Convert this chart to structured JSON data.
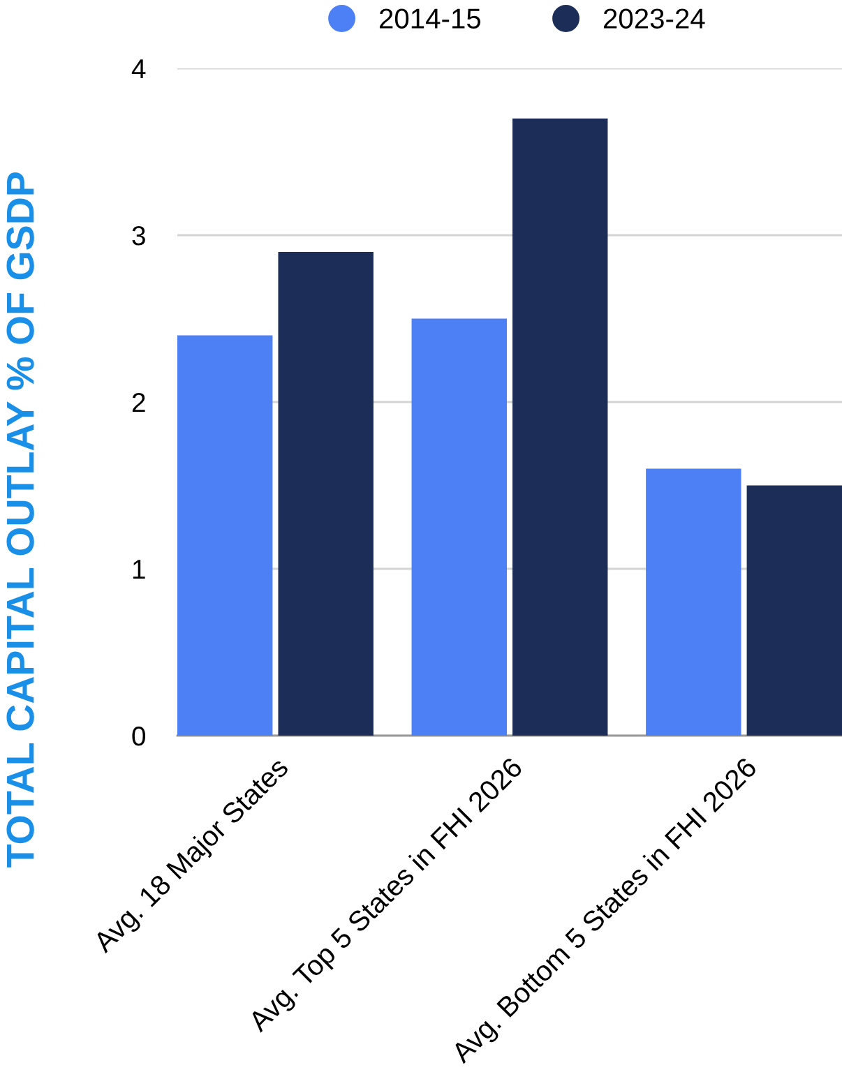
{
  "chart_data": {
    "type": "bar",
    "ylabel": "TOTAL CAPITAL OUTLAY % OF GSDP",
    "categories": [
      "Avg. 18 Major States",
      "Avg. Top 5 States in FHI 2026",
      "Avg. Bottom 5 States in FHI 2026"
    ],
    "series": [
      {
        "name": "2014-15",
        "color": "#4d7ff5",
        "values": [
          2.4,
          2.5,
          1.6
        ]
      },
      {
        "name": "2023-24",
        "color": "#1c2d57",
        "values": [
          2.9,
          3.7,
          1.5
        ]
      }
    ],
    "ylim": [
      0,
      4
    ],
    "yticks": [
      0,
      1,
      2,
      3,
      4
    ],
    "grid": "y",
    "legend": "top"
  }
}
